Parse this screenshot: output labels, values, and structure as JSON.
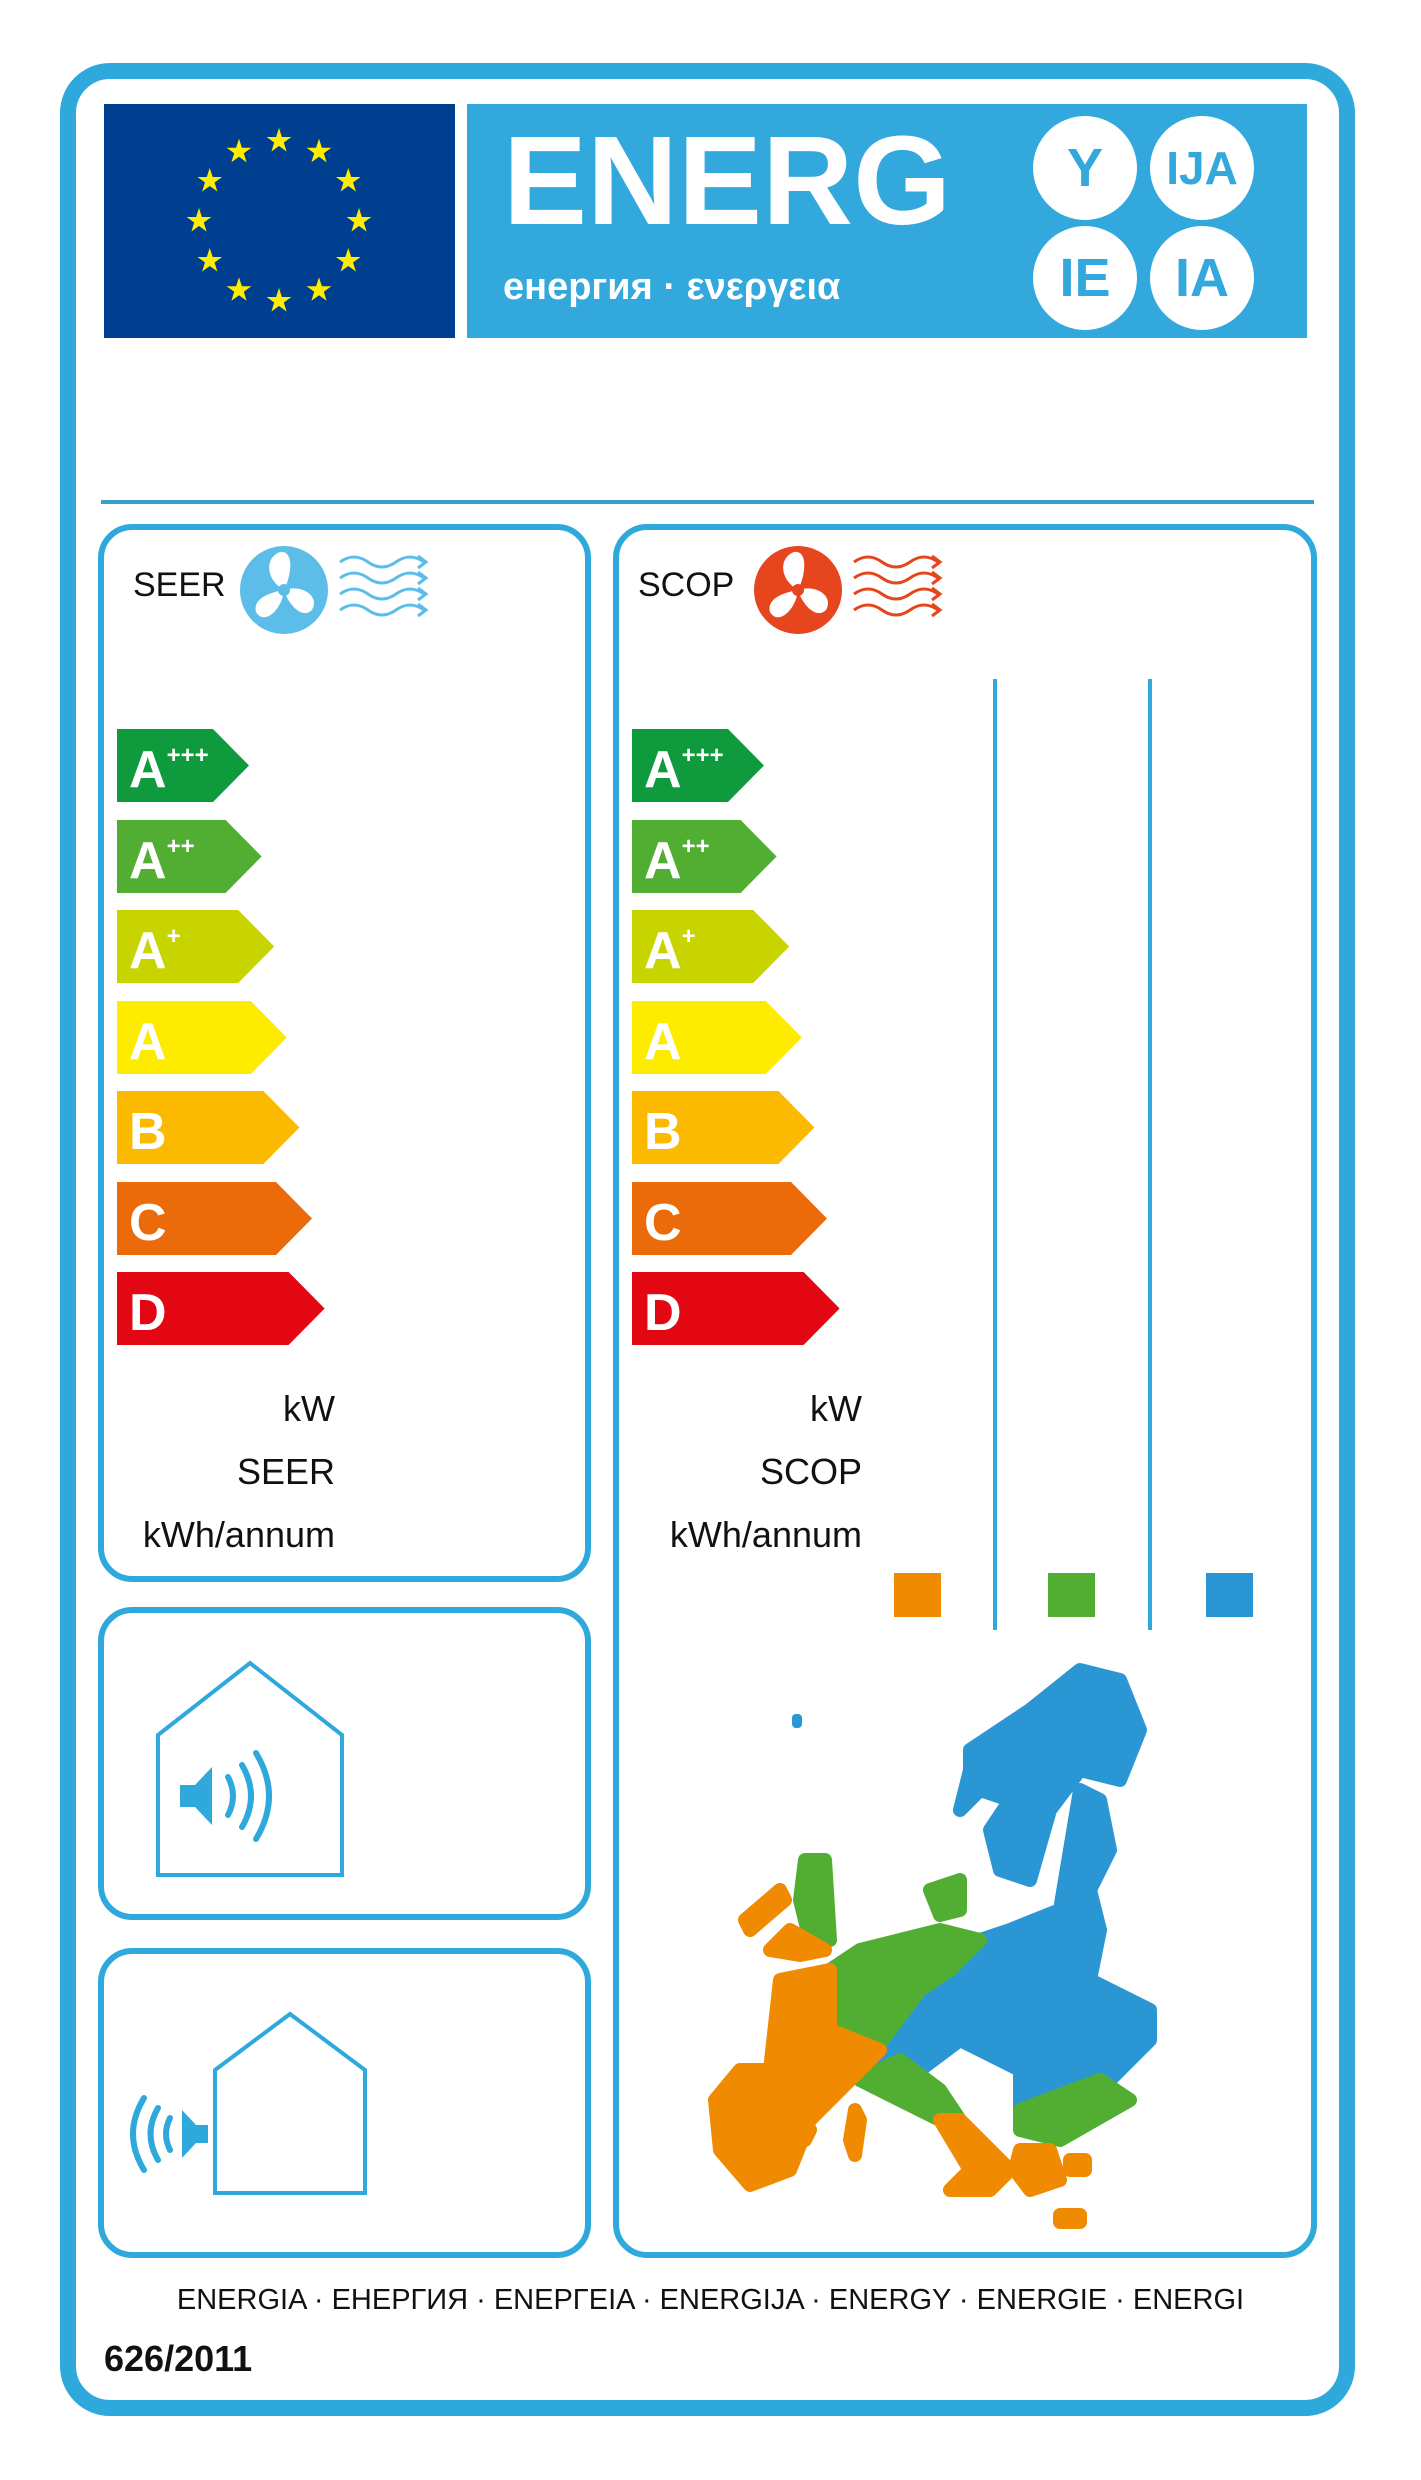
{
  "header": {
    "title": "ENERG",
    "subtitle": "енергия · ενεργεια",
    "suffixes": [
      "Y",
      "IJA",
      "IE",
      "IA"
    ],
    "flag_color": "#003f8f",
    "banner_color": "#32a8dc",
    "star_color": "#ffed00"
  },
  "cooling": {
    "title": "SEER",
    "icon": "fan-cold-air-icon",
    "icon_color": "#5bbde8",
    "classes": [
      {
        "letter": "A",
        "sup": "+++",
        "color": "#0f9a3d"
      },
      {
        "letter": "A",
        "sup": "++",
        "color": "#52ae32"
      },
      {
        "letter": "A",
        "sup": "+",
        "color": "#c8d400"
      },
      {
        "letter": "A",
        "sup": "",
        "color": "#fdeb00"
      },
      {
        "letter": "B",
        "sup": "",
        "color": "#fbba00"
      },
      {
        "letter": "C",
        "sup": "",
        "color": "#eb6a0a"
      },
      {
        "letter": "D",
        "sup": "",
        "color": "#e30613"
      }
    ],
    "labels": [
      "kW",
      "SEER",
      "kWh/annum"
    ]
  },
  "heating": {
    "title": "SCOP",
    "icon": "fan-warm-air-icon",
    "icon_color": "#e6461e",
    "labels": [
      "kW",
      "SCOP",
      "kWh/annum"
    ],
    "climate_zones": [
      {
        "zone": "warmer",
        "color": "#f08a00"
      },
      {
        "zone": "average",
        "color": "#52ae32"
      },
      {
        "zone": "colder",
        "color": "#2a97d4"
      }
    ]
  },
  "noise": {
    "indoor_icon": "indoor-noise-house-icon",
    "outdoor_icon": "outdoor-noise-house-icon"
  },
  "footer": {
    "languages": "ENERGIA · ЕНЕРГИЯ · ΕΝΕΡΓΕΙΑ · ENERGIJA · ENERGY · ENERGIE · ENERGI",
    "regulation": "626/2011"
  }
}
